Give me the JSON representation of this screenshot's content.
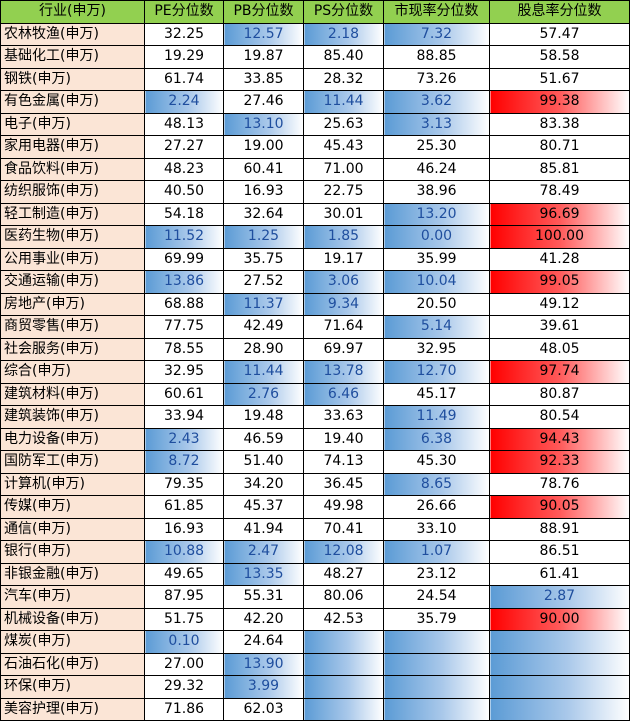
{
  "headers": [
    "行业(申万)",
    "PE分位数",
    "PB分位数",
    "PS分位数",
    "市现率分位数",
    "股息率分位数"
  ],
  "accent": {
    "header_bg": "#92d050",
    "name_bg": "#fbe5d6",
    "bar_blue": "#5b9bd5",
    "bar_red": "#ff0000",
    "blue_text": "#1f4e9e"
  },
  "rows": [
    {
      "name": "农林牧渔(申万)",
      "pe": "32.25",
      "pb": "12.57",
      "ps": "2.18",
      "pcf": "7.32",
      "dy": "57.47"
    },
    {
      "name": "基础化工(申万)",
      "pe": "19.29",
      "pb": "19.87",
      "ps": "85.40",
      "pcf": "88.85",
      "dy": "58.58"
    },
    {
      "name": "钢铁(申万)",
      "pe": "61.74",
      "pb": "33.85",
      "ps": "28.32",
      "pcf": "73.26",
      "dy": "51.67"
    },
    {
      "name": "有色金属(申万)",
      "pe": "2.24",
      "pb": "27.46",
      "ps": "11.44",
      "pcf": "3.62",
      "dy": "99.38"
    },
    {
      "name": "电子(申万)",
      "pe": "48.13",
      "pb": "13.10",
      "ps": "25.63",
      "pcf": "3.13",
      "dy": "83.38"
    },
    {
      "name": "家用电器(申万)",
      "pe": "27.27",
      "pb": "19.00",
      "ps": "45.43",
      "pcf": "25.30",
      "dy": "80.71"
    },
    {
      "name": "食品饮料(申万)",
      "pe": "48.23",
      "pb": "60.41",
      "ps": "71.00",
      "pcf": "46.24",
      "dy": "85.81"
    },
    {
      "name": "纺织服饰(申万)",
      "pe": "40.50",
      "pb": "16.93",
      "ps": "22.75",
      "pcf": "38.96",
      "dy": "78.49"
    },
    {
      "name": "轻工制造(申万)",
      "pe": "54.18",
      "pb": "32.64",
      "ps": "30.01",
      "pcf": "13.20",
      "dy": "96.69"
    },
    {
      "name": "医药生物(申万)",
      "pe": "11.52",
      "pb": "1.25",
      "ps": "1.85",
      "pcf": "0.00",
      "dy": "100.00"
    },
    {
      "name": "公用事业(申万)",
      "pe": "69.99",
      "pb": "35.75",
      "ps": "19.17",
      "pcf": "35.99",
      "dy": "41.28"
    },
    {
      "name": "交通运输(申万)",
      "pe": "13.86",
      "pb": "27.52",
      "ps": "3.06",
      "pcf": "10.04",
      "dy": "99.05"
    },
    {
      "name": "房地产(申万)",
      "pe": "68.88",
      "pb": "11.37",
      "ps": "9.34",
      "pcf": "20.50",
      "dy": "49.12"
    },
    {
      "name": "商贸零售(申万)",
      "pe": "77.75",
      "pb": "42.49",
      "ps": "71.64",
      "pcf": "5.14",
      "dy": "39.61"
    },
    {
      "name": "社会服务(申万)",
      "pe": "78.55",
      "pb": "28.90",
      "ps": "69.97",
      "pcf": "32.95",
      "dy": "48.05"
    },
    {
      "name": "综合(申万)",
      "pe": "32.95",
      "pb": "11.44",
      "ps": "13.78",
      "pcf": "12.70",
      "dy": "97.74"
    },
    {
      "name": "建筑材料(申万)",
      "pe": "60.61",
      "pb": "2.76",
      "ps": "6.46",
      "pcf": "45.17",
      "dy": "80.87"
    },
    {
      "name": "建筑装饰(申万)",
      "pe": "33.94",
      "pb": "19.48",
      "ps": "33.63",
      "pcf": "11.49",
      "dy": "80.54"
    },
    {
      "name": "电力设备(申万)",
      "pe": "2.43",
      "pb": "46.59",
      "ps": "19.40",
      "pcf": "6.38",
      "dy": "94.43"
    },
    {
      "name": "国防军工(申万)",
      "pe": "8.72",
      "pb": "51.40",
      "ps": "74.13",
      "pcf": "45.30",
      "dy": "92.33"
    },
    {
      "name": "计算机(申万)",
      "pe": "79.35",
      "pb": "34.20",
      "ps": "36.45",
      "pcf": "8.65",
      "dy": "78.76"
    },
    {
      "name": "传媒(申万)",
      "pe": "61.85",
      "pb": "45.37",
      "ps": "49.98",
      "pcf": "26.66",
      "dy": "90.05"
    },
    {
      "name": "通信(申万)",
      "pe": "16.93",
      "pb": "41.94",
      "ps": "70.41",
      "pcf": "33.10",
      "dy": "88.91"
    },
    {
      "name": "银行(申万)",
      "pe": "10.88",
      "pb": "2.47",
      "ps": "12.08",
      "pcf": "1.07",
      "dy": "86.51"
    },
    {
      "name": "非银金融(申万)",
      "pe": "49.65",
      "pb": "13.35",
      "ps": "48.27",
      "pcf": "23.12",
      "dy": "61.41"
    },
    {
      "name": "汽车(申万)",
      "pe": "87.95",
      "pb": "55.31",
      "ps": "80.06",
      "pcf": "24.54",
      "dy": "2.87"
    },
    {
      "name": "机械设备(申万)",
      "pe": "51.75",
      "pb": "42.20",
      "ps": "42.53",
      "pcf": "35.79",
      "dy": "90.00"
    },
    {
      "name": "煤炭(申万)",
      "pe": "0.10",
      "pb": "24.64",
      "ps": "",
      "pcf": "",
      "dy": ""
    },
    {
      "name": "石油石化(申万)",
      "pe": "27.00",
      "pb": "13.90",
      "ps": "",
      "pcf": "",
      "dy": ""
    },
    {
      "name": "环保(申万)",
      "pe": "29.32",
      "pb": "3.99",
      "ps": "",
      "pcf": "",
      "dy": ""
    },
    {
      "name": "美容护理(申万)",
      "pe": "71.86",
      "pb": "62.03",
      "ps": "",
      "pcf": "",
      "dy": ""
    }
  ]
}
